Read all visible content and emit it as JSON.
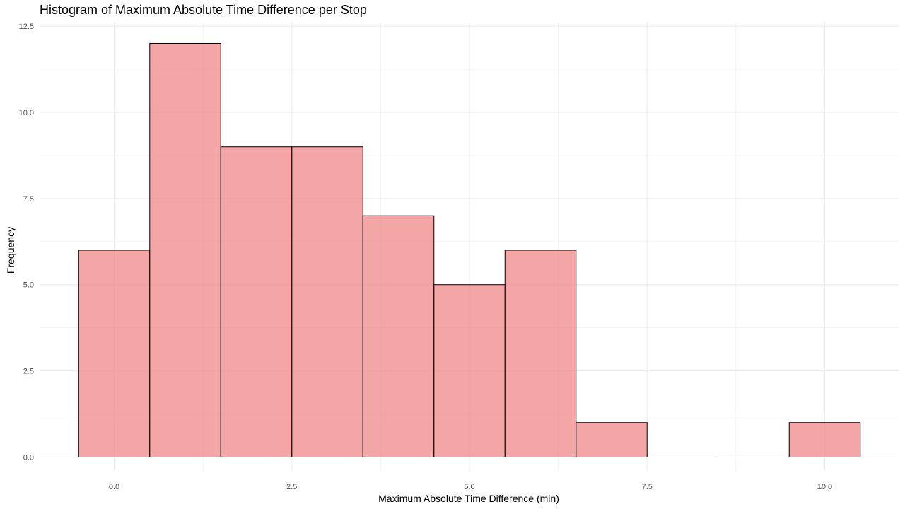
{
  "chart_data": {
    "type": "bar",
    "title": "Histogram of Maximum Absolute Time Difference per Stop",
    "xlabel": "Maximum Absolute Time Difference (min)",
    "ylabel": "Frequency",
    "bins": [
      {
        "x0": -0.5,
        "x1": 0.5,
        "count": 6
      },
      {
        "x0": 0.5,
        "x1": 1.5,
        "count": 12
      },
      {
        "x0": 1.5,
        "x1": 2.5,
        "count": 9
      },
      {
        "x0": 2.5,
        "x1": 3.5,
        "count": 9
      },
      {
        "x0": 3.5,
        "x1": 4.5,
        "count": 7
      },
      {
        "x0": 4.5,
        "x1": 5.5,
        "count": 5
      },
      {
        "x0": 5.5,
        "x1": 6.5,
        "count": 6
      },
      {
        "x0": 6.5,
        "x1": 7.5,
        "count": 1
      },
      {
        "x0": 7.5,
        "x1": 8.5,
        "count": 0
      },
      {
        "x0": 8.5,
        "x1": 9.5,
        "count": 0
      },
      {
        "x0": 9.5,
        "x1": 10.5,
        "count": 1
      }
    ],
    "x_ticks": [
      {
        "value": 0,
        "label": "0.0"
      },
      {
        "value": 2.5,
        "label": "2.5"
      },
      {
        "value": 5,
        "label": "5.0"
      },
      {
        "value": 7.5,
        "label": "7.5"
      },
      {
        "value": 10,
        "label": "10.0"
      }
    ],
    "y_ticks": [
      {
        "value": 0,
        "label": "0.0"
      },
      {
        "value": 2.5,
        "label": "2.5"
      },
      {
        "value": 5,
        "label": "5.0"
      },
      {
        "value": 7.5,
        "label": "7.5"
      },
      {
        "value": 10,
        "label": "10.0"
      },
      {
        "value": 12.5,
        "label": "12.5"
      }
    ],
    "xlim": [
      -1.05,
      11.05
    ],
    "ylim": [
      0,
      12.5
    ],
    "grid": true,
    "colors": {
      "fill": "#f08080",
      "fill_opacity": 0.7,
      "stroke": "#000000",
      "grid": "#ebebeb"
    }
  }
}
